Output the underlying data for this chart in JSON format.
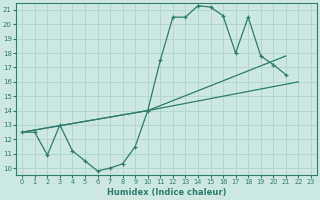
{
  "bg_color": "#cce8e0",
  "grid_color": "#b0d8d0",
  "line_color": "#2e7d6e",
  "xlabel": "Humidex (Indice chaleur)",
  "xlim": [
    -0.5,
    23.5
  ],
  "ylim": [
    9.5,
    21.5
  ],
  "xticks": [
    0,
    1,
    2,
    3,
    4,
    5,
    6,
    7,
    8,
    9,
    10,
    11,
    12,
    13,
    14,
    15,
    16,
    17,
    18,
    19,
    20,
    21,
    22,
    23
  ],
  "yticks": [
    10,
    11,
    12,
    13,
    14,
    15,
    16,
    17,
    18,
    19,
    20,
    21
  ],
  "curve1_x": [
    0,
    1,
    2,
    3,
    4,
    5,
    6,
    7,
    8,
    9,
    10,
    11,
    12,
    13,
    14,
    15,
    16,
    17,
    18,
    19,
    20,
    21
  ],
  "curve1_y": [
    12.5,
    12.5,
    10.9,
    13.0,
    11.2,
    10.5,
    9.8,
    10.0,
    10.3,
    11.5,
    14.0,
    17.5,
    20.5,
    20.5,
    21.3,
    21.2,
    20.6,
    18.0,
    20.5,
    17.8,
    17.2,
    16.5
  ],
  "line2_x": [
    0,
    10,
    22
  ],
  "line2_y": [
    12.5,
    14.0,
    16.0
  ],
  "line3_x": [
    0,
    10,
    21
  ],
  "line3_y": [
    12.5,
    14.0,
    17.8
  ]
}
